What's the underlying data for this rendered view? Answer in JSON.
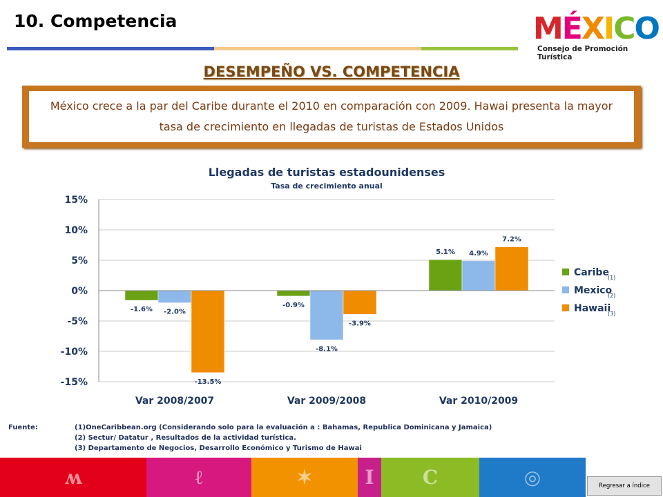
{
  "page": {
    "title": "10. Competencia",
    "heading": "DESEMPEÑO VS. COMPETENCIA",
    "callout": "México  crece a  la par del Caribe durante el  2010 en comparación con 2009. Hawai presenta la mayor tasa de crecimiento en llegadas de turistas de Estados Unidos",
    "back_button": "Regresar a índice"
  },
  "logo": {
    "letters": [
      "M",
      "É",
      "X",
      "I",
      "C",
      "O"
    ],
    "letter_colors": [
      "#d7262b",
      "#e4007c",
      "#f08a00",
      "#f7b500",
      "#7ab829",
      "#0077c0"
    ],
    "subtitle": "Consejo de Promoción Turística"
  },
  "title_bar_colors": [
    "#3b5bbf",
    "#f3c98a",
    "#9ac33c"
  ],
  "chart_data": {
    "type": "bar",
    "title": "Llegadas de turistas estadounidenses",
    "subtitle": "Tasa de crecimiento anual",
    "categories": [
      "Var 2008/2007",
      "Var 2009/2008",
      "Var 2010/2009"
    ],
    "series": [
      {
        "name": "Caribe",
        "note": "(1)",
        "color": "#6aa214",
        "values": [
          -1.6,
          -0.9,
          5.1
        ],
        "labels": [
          "-1.6%",
          "-0.9%",
          "5.1%"
        ]
      },
      {
        "name": "Mexico",
        "note": "(2)",
        "color": "#8db8ea",
        "values": [
          -2.0,
          -8.1,
          4.9
        ],
        "labels": [
          "-2.0%",
          "-8.1%",
          "4.9%"
        ]
      },
      {
        "name": "Hawaii",
        "note": "(3)",
        "color": "#f08c00",
        "values": [
          -13.5,
          -3.9,
          7.2
        ],
        "labels": [
          "-13.5%",
          "-3.9%",
          "7.2%"
        ]
      }
    ],
    "ylim": [
      -15,
      15
    ],
    "yticks": [
      15,
      10,
      5,
      0,
      -5,
      -10,
      -15
    ],
    "ytick_labels": [
      "15%",
      "10%",
      "5%",
      "0%",
      "-5%",
      "-10%",
      "-15%"
    ],
    "grid": true,
    "legend": "right"
  },
  "sources": {
    "label": "Fuente:",
    "lines": [
      "(1)OneCaribbean.org  (Considerando solo para la evaluación  a : Bahamas,  Republica Dominicana  y Jamaica)",
      "(2) Sectur/ Datatur  , Resultados de la actividad  turística.",
      "(3) Departamento de Negocios, Desarrollo Económico  y Turismo de Hawai"
    ]
  },
  "footer": {
    "segments": [
      {
        "color": "#e2001a",
        "icon": "mesoamerican-glyph-icon"
      },
      {
        "color": "#d7197f",
        "icon": "spiral-glyph-icon"
      },
      {
        "color": "#f39200",
        "icon": "star-glyph-icon"
      },
      {
        "color": "#c8208a",
        "icon": "pillar-glyph-icon"
      },
      {
        "color": "#8dbb25",
        "icon": "wave-glyph-icon"
      },
      {
        "color": "#1f7ac8",
        "icon": "circle-glyph-icon"
      }
    ]
  }
}
